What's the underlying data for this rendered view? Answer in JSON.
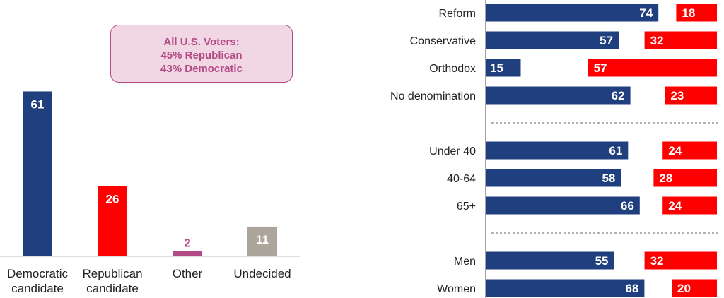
{
  "callout": {
    "line1": "All U.S. Voters:",
    "line2": "45% Republican",
    "line3": "43% Democratic"
  },
  "colors": {
    "democratic": "#1f3f7f",
    "republican": "#ff0000",
    "other": "#b24a86",
    "undecided": "#aca59c",
    "callout_fill": "#f1d6e4",
    "callout_border": "#b24a86",
    "divider": "#555555"
  },
  "chart_data": [
    {
      "type": "bar",
      "categories": [
        [
          "Democratic",
          "candidate"
        ],
        [
          "Republican",
          "candidate"
        ],
        [
          "Other"
        ],
        [
          "Undecided"
        ]
      ],
      "values": [
        61,
        26,
        2,
        11
      ],
      "colors": [
        "#1f3f7f",
        "#ff0000",
        "#b24a86",
        "#aca59c"
      ],
      "data_label_positions": [
        "inside",
        "inside",
        "above",
        "inside"
      ],
      "ylim": [
        0,
        70
      ],
      "grid": false
    },
    {
      "type": "bar",
      "orientation": "horizontal",
      "categories": [
        "Reform",
        "Conservative",
        "Orthodox",
        "No denomination",
        "Under 40",
        "40-64",
        "65+",
        "Men",
        "Women"
      ],
      "groups": [
        [
          "Reform",
          "Conservative",
          "Orthodox",
          "No denomination"
        ],
        [
          "Under 40",
          "40-64",
          "65+"
        ],
        [
          "Men",
          "Women"
        ]
      ],
      "series": [
        {
          "values": [
            74,
            57,
            15,
            62,
            61,
            58,
            66,
            55,
            68
          ],
          "color": "#1f3f7f"
        },
        {
          "values": [
            18,
            32,
            57,
            23,
            24,
            28,
            24,
            32,
            20
          ],
          "color": "#ff0000"
        }
      ],
      "grid": false
    }
  ]
}
